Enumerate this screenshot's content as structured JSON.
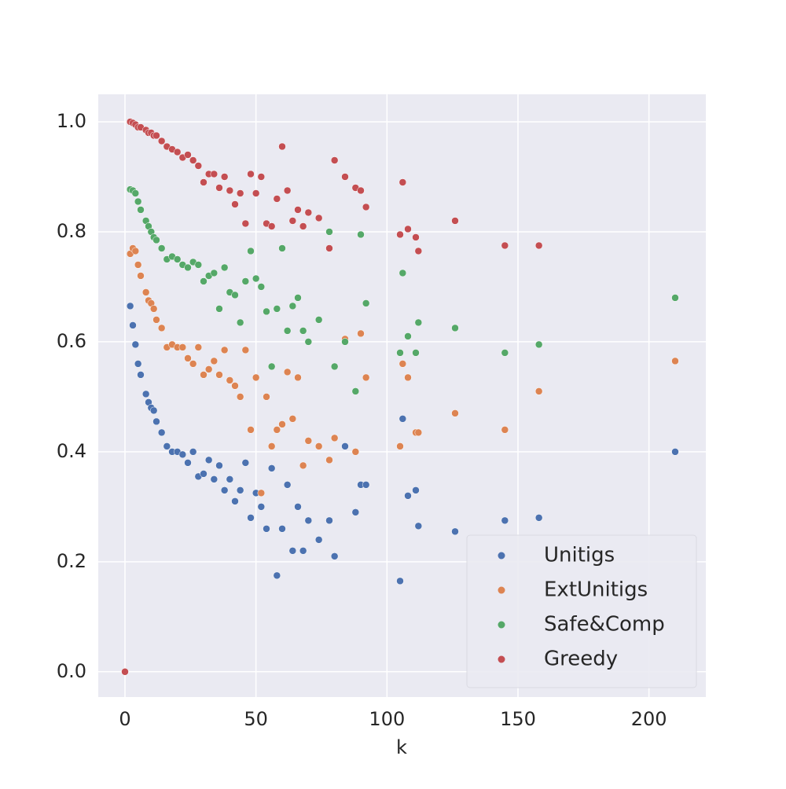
{
  "chart_data": {
    "type": "scatter",
    "xlabel": "k",
    "x": [
      0,
      2,
      3,
      4,
      5,
      6,
      8,
      9,
      10,
      11,
      12,
      14,
      16,
      18,
      20,
      22,
      24,
      26,
      28,
      30,
      32,
      34,
      36,
      38,
      40,
      42,
      44,
      46,
      48,
      50,
      52,
      54,
      56,
      58,
      60,
      62,
      64,
      66,
      68,
      70,
      74,
      78,
      80,
      84,
      88,
      90,
      92,
      105,
      106,
      108,
      111,
      112,
      126,
      145,
      158,
      210
    ],
    "series": [
      {
        "name": "Unitigs",
        "color": "#4c72b0",
        "values": [
          0,
          0.665,
          0.63,
          0.595,
          0.56,
          0.54,
          0.505,
          0.49,
          0.48,
          0.475,
          0.455,
          0.435,
          0.41,
          0.4,
          0.4,
          0.395,
          0.38,
          0.4,
          0.355,
          0.36,
          0.385,
          0.35,
          0.375,
          0.33,
          0.35,
          0.31,
          0.33,
          0.38,
          0.28,
          0.325,
          0.3,
          0.26,
          0.37,
          0.175,
          0.26,
          0.34,
          0.22,
          0.3,
          0.22,
          0.275,
          0.24,
          0.275,
          0.21,
          0.41,
          0.29,
          0.34,
          0.34,
          0.165,
          0.46,
          0.32,
          0.33,
          0.265,
          0.255,
          0.275,
          0.28,
          0.4
        ]
      },
      {
        "name": "ExtUnitigs",
        "color": "#dd8452",
        "values": [
          0,
          0.76,
          0.77,
          0.765,
          0.74,
          0.72,
          0.69,
          0.675,
          0.67,
          0.66,
          0.64,
          0.625,
          0.59,
          0.595,
          0.59,
          0.59,
          0.57,
          0.56,
          0.59,
          0.54,
          0.55,
          0.565,
          0.54,
          0.585,
          0.53,
          0.52,
          0.5,
          0.585,
          0.44,
          0.535,
          0.325,
          0.5,
          0.41,
          0.44,
          0.45,
          0.545,
          0.46,
          0.535,
          0.375,
          0.42,
          0.41,
          0.385,
          0.425,
          0.605,
          0.4,
          0.615,
          0.535,
          0.41,
          0.56,
          0.535,
          0.435,
          0.435,
          0.47,
          0.44,
          0.51,
          0.565
        ]
      },
      {
        "name": "Safe&Comp",
        "color": "#55a868",
        "values": [
          0,
          0.877,
          0.875,
          0.87,
          0.855,
          0.84,
          0.82,
          0.81,
          0.8,
          0.79,
          0.785,
          0.77,
          0.75,
          0.755,
          0.75,
          0.74,
          0.735,
          0.745,
          0.74,
          0.71,
          0.72,
          0.725,
          0.66,
          0.735,
          0.69,
          0.685,
          0.635,
          0.71,
          0.765,
          0.715,
          0.7,
          0.655,
          0.555,
          0.66,
          0.77,
          0.62,
          0.665,
          0.68,
          0.62,
          0.6,
          0.64,
          0.8,
          0.555,
          0.6,
          0.51,
          0.795,
          0.67,
          0.58,
          0.725,
          0.61,
          0.58,
          0.635,
          0.625,
          0.58,
          0.595,
          0.68
        ]
      },
      {
        "name": "Greedy",
        "color": "#c44e52",
        "values": [
          0,
          1.0,
          0.998,
          0.995,
          0.99,
          0.99,
          0.985,
          0.98,
          0.98,
          0.975,
          0.975,
          0.965,
          0.955,
          0.95,
          0.945,
          0.935,
          0.94,
          0.93,
          0.92,
          0.89,
          0.905,
          0.905,
          0.88,
          0.9,
          0.875,
          0.85,
          0.87,
          0.815,
          0.905,
          0.87,
          0.9,
          0.815,
          0.81,
          0.86,
          0.955,
          0.875,
          0.82,
          0.84,
          0.81,
          0.835,
          0.825,
          0.77,
          0.93,
          0.9,
          0.88,
          0.875,
          0.845,
          0.795,
          0.89,
          0.805,
          0.79,
          0.765,
          0.82,
          0.775,
          0.775,
          null
        ]
      }
    ],
    "xlim": [
      -10.2,
      221.7
    ],
    "ylim": [
      -0.046,
      1.05
    ],
    "xticks": [
      0,
      50,
      100,
      150,
      200
    ],
    "yticks": [
      {
        "value": 0,
        "label": "0.0"
      },
      0.2,
      0.4,
      0.6,
      0.8,
      {
        "value": 1,
        "label": "1.0"
      }
    ],
    "grid": true,
    "legend": "lower right"
  }
}
